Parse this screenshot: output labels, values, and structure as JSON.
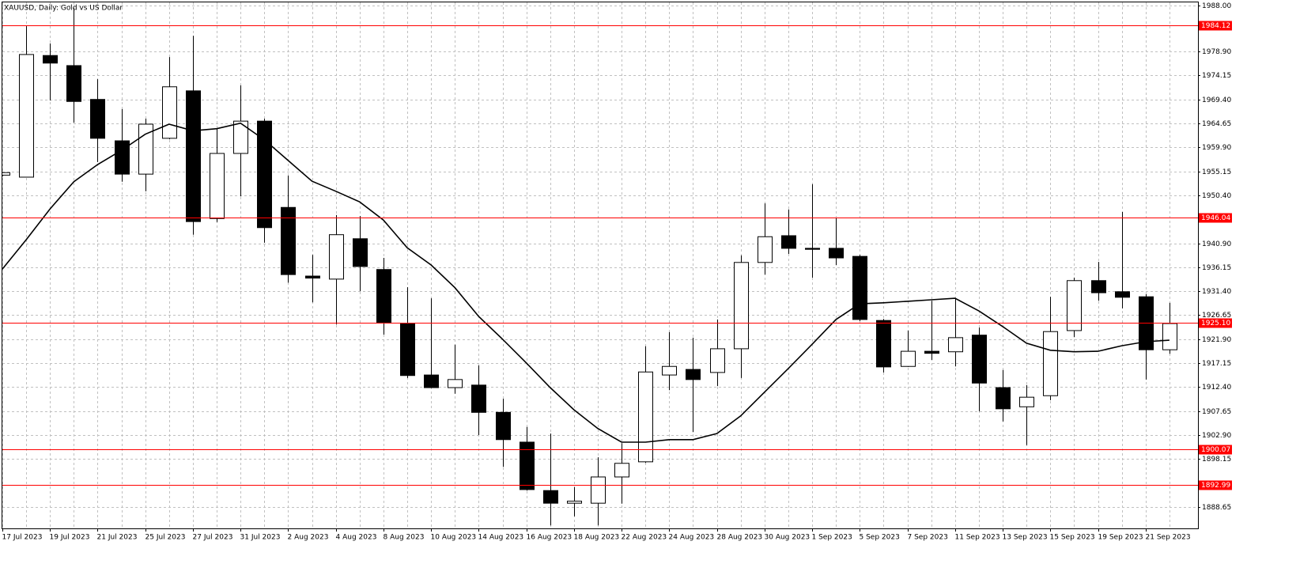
{
  "chart_data": {
    "type": "candlestick",
    "title": "XAUUSD, Daily:  Gold vs US Dollar",
    "categories": [
      "17 Jul 2023",
      null,
      "19 Jul 2023",
      null,
      "21 Jul 2023",
      null,
      "25 Jul 2023",
      null,
      "27 Jul 2023",
      null,
      "31 Jul 2023",
      null,
      "2 Aug 2023",
      null,
      "4 Aug 2023",
      null,
      "8 Aug 2023",
      null,
      "10 Aug 2023",
      null,
      "14 Aug 2023",
      null,
      "16 Aug 2023",
      null,
      "18 Aug 2023",
      null,
      "22 Aug 2023",
      null,
      "24 Aug 2023",
      null,
      "28 Aug 2023",
      null,
      "30 Aug 2023",
      null,
      "1 Sep 2023",
      null,
      "5 Sep 2023",
      null,
      "7 Sep 2023",
      null,
      "11 Sep 2023",
      null,
      "13 Sep 2023",
      null,
      "15 Sep 2023",
      null,
      "19 Sep 2023",
      null,
      "21 Sep 2023",
      null
    ],
    "open": [
      1954.4,
      1954.0,
      1978.1,
      1976.1,
      1969.4,
      1961.2,
      1954.6,
      1961.7,
      1971.1,
      1945.8,
      1958.7,
      1965.1,
      1948.0,
      1934.4,
      1933.8,
      1941.8,
      1935.7,
      1925.0,
      1914.8,
      1912.3,
      1912.8,
      1907.4,
      1901.5,
      1891.9,
      1889.4,
      1889.4,
      1894.6,
      1897.6,
      1914.8,
      1915.9,
      1915.3,
      1920.0,
      1937.1,
      1942.4,
      1939.9,
      1939.9,
      1938.3,
      1925.6,
      1916.5,
      1919.5,
      1919.4,
      1922.7,
      1912.3,
      1908.5,
      1910.7,
      1923.6,
      1933.5,
      1931.3,
      1930.3,
      1919.8
    ],
    "high": [
      1955.0,
      1983.9,
      1980.5,
      1987.5,
      1973.4,
      1967.5,
      1965.6,
      1977.8,
      1982.0,
      1963.6,
      1972.2,
      1965.6,
      1954.3,
      1938.6,
      1946.5,
      1946.3,
      1938.0,
      1932.2,
      1930.0,
      1920.8,
      1916.7,
      1910.1,
      1904.5,
      1903.2,
      1892.6,
      1898.5,
      1901.3,
      1920.5,
      1923.3,
      1922.2,
      1925.8,
      1938.5,
      1948.8,
      1947.6,
      1952.6,
      1946.0,
      1938.6,
      1925.9,
      1923.6,
      1929.5,
      1930.0,
      1924.2,
      1915.8,
      1912.8,
      1930.3,
      1934.1,
      1937.2,
      1947.1,
      1930.8,
      1929.1
    ],
    "low": [
      1954.2,
      1954.0,
      1969.2,
      1964.8,
      1957.0,
      1953.1,
      1951.2,
      1961.5,
      1942.6,
      1945.1,
      1950.2,
      1941.0,
      1933.1,
      1929.2,
      1924.8,
      1931.4,
      1922.8,
      1914.2,
      1912.2,
      1911.1,
      1902.9,
      1896.6,
      1891.9,
      1885.0,
      1886.8,
      1885.0,
      1889.3,
      1897.4,
      1911.8,
      1903.5,
      1912.6,
      1914.2,
      1934.7,
      1938.8,
      1934.1,
      1936.6,
      1925.5,
      1915.3,
      1916.4,
      1917.8,
      1916.5,
      1907.6,
      1905.6,
      1900.9,
      1909.8,
      1922.3,
      1929.5,
      1928.0,
      1913.9,
      1919.0
    ],
    "close": [
      1954.9,
      1978.3,
      1976.6,
      1969.0,
      1961.7,
      1954.6,
      1964.5,
      1971.9,
      1945.2,
      1958.7,
      1965.1,
      1944.0,
      1934.7,
      1934.0,
      1942.6,
      1936.3,
      1925.2,
      1914.7,
      1912.3,
      1913.9,
      1907.4,
      1902.0,
      1892.1,
      1889.4,
      1889.8,
      1894.6,
      1897.3,
      1915.4,
      1916.5,
      1913.9,
      1920.0,
      1937.1,
      1942.2,
      1939.9,
      1939.7,
      1938.0,
      1925.8,
      1916.4,
      1919.5,
      1919.1,
      1922.2,
      1913.2,
      1908.1,
      1910.4,
      1923.4,
      1933.5,
      1931.1,
      1930.2,
      1919.8,
      1925.0
    ],
    "up_color": "#ffffff",
    "down_color": "#000000",
    "ma": {
      "color": "#000000",
      "values": [
        1935.8,
        1941.6,
        1947.7,
        1953.1,
        1956.5,
        1959.3,
        1962.5,
        1964.5,
        1963.2,
        1963.6,
        1964.7,
        1961.4,
        1957.3,
        1953.2,
        1951.2,
        1949.1,
        1945.5,
        1940.0,
        1936.6,
        1932.1,
        1926.4,
        1921.9,
        1917.2,
        1912.3,
        1907.9,
        1904.2,
        1901.5,
        1901.5,
        1902.0,
        1902.0,
        1903.2,
        1906.7,
        1911.4,
        1916.1,
        1920.9,
        1925.8,
        1928.9,
        1929.1,
        1929.4,
        1929.7,
        1930.0,
        1927.5,
        1924.4,
        1921.1,
        1919.7,
        1919.4,
        1919.5,
        1920.6,
        1921.4,
        1921.7
      ]
    },
    "levels": [
      {
        "value": 1984.12,
        "label": "1984.12"
      },
      {
        "value": 1946.04,
        "label": "1946.04"
      },
      {
        "value": 1925.1,
        "label": "1925.10"
      },
      {
        "value": 1900.07,
        "label": "1900.07"
      },
      {
        "value": 1892.99,
        "label": "1892.99"
      }
    ],
    "level_color": "#ff0000",
    "ylim": [
      1884.41,
      1988.63
    ],
    "yticks": [
      {
        "value": 1988,
        "label": "1988.00"
      },
      {
        "value": 1978.9,
        "label": "1978.90"
      },
      1974.15,
      {
        "value": 1969.4,
        "label": "1969.40"
      },
      1964.65,
      {
        "value": 1959.9,
        "label": "1959.90"
      },
      1955.15,
      {
        "value": 1950.4,
        "label": "1950.40"
      },
      {
        "value": 1940.9,
        "label": "1940.90"
      },
      1936.15,
      {
        "value": 1931.4,
        "label": "1931.40"
      },
      1926.65,
      {
        "value": 1921.9,
        "label": "1921.90"
      },
      1917.15,
      {
        "value": 1912.4,
        "label": "1912.40"
      },
      1907.65,
      {
        "value": 1902.9,
        "label": "1902.90"
      },
      1898.15,
      1888.65
    ],
    "grid": true
  }
}
